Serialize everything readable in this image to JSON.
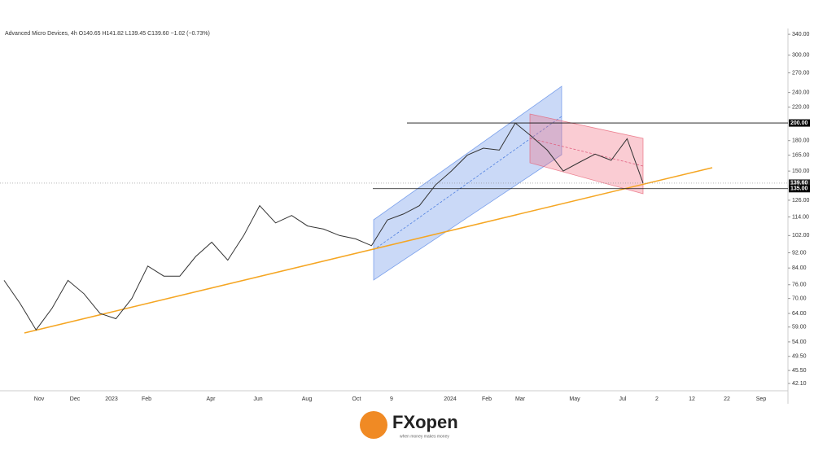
{
  "header": {
    "title": "Advanced Micro Devices, 4h  O140.65  H141.82  L139.45  C139.60  −1.02 (−0.73%)"
  },
  "chart_data": {
    "type": "line",
    "log_scale": true,
    "series": [
      {
        "color": "#333333",
        "values": [
          78,
          68,
          58,
          66,
          78,
          72,
          64,
          62,
          70,
          85,
          80,
          80,
          90,
          98,
          88,
          102,
          122,
          110,
          115,
          108,
          106,
          102,
          100,
          96,
          112,
          116,
          122,
          138,
          150,
          165,
          172,
          170,
          200,
          185,
          170,
          150,
          158,
          166,
          160,
          182,
          139.6
        ]
      }
    ],
    "ylim": [
      40.3,
      352
    ],
    "yticks": [
      {
        "value": 340,
        "label": "340.00"
      },
      {
        "value": 300,
        "label": "300.00"
      },
      {
        "value": 270,
        "label": "270.00"
      },
      {
        "value": 240,
        "label": "240.00"
      },
      {
        "value": 220,
        "label": "220.00"
      },
      {
        "value": 180,
        "label": "180.00"
      },
      {
        "value": 165,
        "label": "165.00"
      },
      {
        "value": 150,
        "label": "150.00"
      },
      {
        "value": 126,
        "label": "126.00"
      },
      {
        "value": 114,
        "label": "114.00"
      },
      {
        "value": 102,
        "label": "102.00"
      },
      {
        "value": 92,
        "label": "92.00"
      },
      {
        "value": 84,
        "label": "84.00"
      },
      {
        "value": 76,
        "label": "76.00"
      },
      {
        "value": 70,
        "label": "70.00"
      },
      {
        "value": 64,
        "label": "64.00"
      },
      {
        "value": 59,
        "label": "59.00"
      },
      {
        "value": 54,
        "label": "54.00"
      },
      {
        "value": 49.5,
        "label": "49.50"
      },
      {
        "value": 45.5,
        "label": "45.50"
      },
      {
        "value": 42.1,
        "label": "42.10"
      }
    ],
    "levels": [
      {
        "value": 200,
        "label": "200.00"
      },
      {
        "value": 139.6,
        "label": "139.60"
      },
      {
        "value": 135,
        "label": "135.00"
      }
    ],
    "x_tick_labels": [
      "Nov",
      "Dec",
      "2023",
      "Feb",
      "Apr",
      "Jun",
      "Aug",
      "Oct",
      "9",
      "2024",
      "Feb",
      "Mar",
      "May",
      "Jul",
      "2",
      "12",
      "22",
      "Sep"
    ]
  },
  "logo": {
    "brand": "FXopen",
    "tagline": "when money makes money"
  }
}
